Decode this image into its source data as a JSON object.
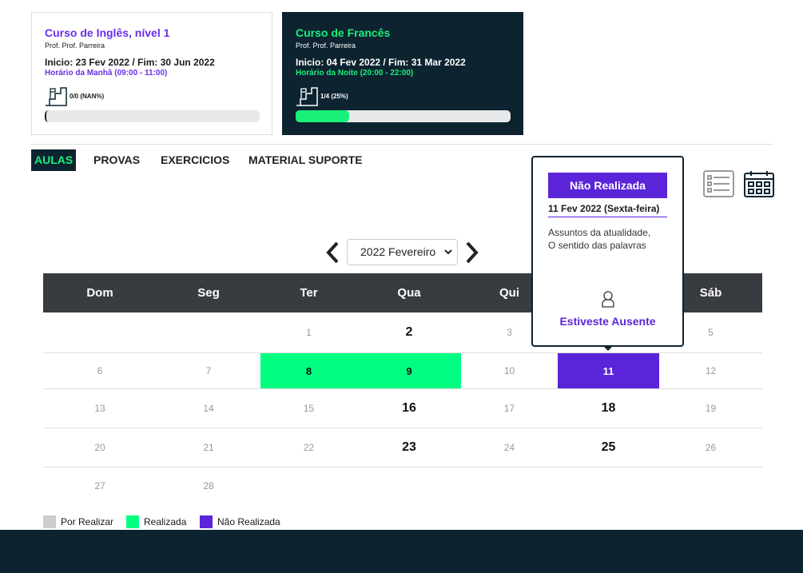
{
  "courses": [
    {
      "title": "Curso de Inglês, nível 1",
      "teacher": "Prof. Prof. Parreira",
      "dates": "Inicio: 23 Fev 2022 / Fim: 30 Jun 2022",
      "schedule": "Horário da Manhã (09:00 - 11:00)",
      "progress_label": "0/0 (NAN%)",
      "progress": 0
    },
    {
      "title": "Curso de Francês",
      "teacher": "Prof. Prof. Parreira",
      "dates": "Inicio: 04 Fev 2022 / Fim: 31 Mar 2022",
      "schedule": "Horário da Noite (20:00 - 22:00)",
      "progress_label": "1/4 (25%)",
      "progress": 25
    }
  ],
  "tabs": [
    "AULAS",
    "PROVAS",
    "EXERCICIOS",
    "MATERIAL SUPORTE"
  ],
  "month": "2022 Fevereiro",
  "calendar": {
    "weekdays": [
      "Dom",
      "Seg",
      "Ter",
      "Qua",
      "Qui",
      null,
      "Sáb"
    ],
    "weeks": [
      [
        null,
        null,
        {
          "day": 1
        },
        {
          "day": 2,
          "bold": true
        },
        {
          "day": 3
        },
        null,
        {
          "day": 5
        }
      ],
      [
        {
          "day": 6
        },
        {
          "day": 7
        },
        {
          "day": 8,
          "color": "#00ff80"
        },
        {
          "day": 9,
          "color": "#00ff80"
        },
        {
          "day": 10
        },
        {
          "day": 11,
          "color": "#5a25d8"
        },
        {
          "day": 12
        }
      ],
      [
        {
          "day": 13
        },
        {
          "day": 14
        },
        {
          "day": 15
        },
        {
          "day": 16,
          "bold": true
        },
        {
          "day": 17
        },
        {
          "day": 18,
          "bold": true
        },
        {
          "day": 19
        }
      ],
      [
        {
          "day": 20
        },
        {
          "day": 21
        },
        {
          "day": 22
        },
        {
          "day": 23,
          "bold": true
        },
        {
          "day": 24
        },
        {
          "day": 25,
          "bold": true
        },
        {
          "day": 26
        }
      ],
      [
        {
          "day": 27
        },
        {
          "day": 28
        },
        null,
        null,
        null,
        null,
        null
      ]
    ]
  },
  "tooltip": {
    "status": "Não Realizada",
    "date": "11 Fev 2022 (Sexta-feira)",
    "topics": [
      "Assuntos da atualidade,",
      "O sentido das palavras"
    ],
    "attendance": "Estiveste Ausente"
  },
  "legend": [
    {
      "label": "Por Realizar",
      "color": "#cccccc"
    },
    {
      "label": "Realizada",
      "color": "#00ff80"
    },
    {
      "label": "Não Realizada",
      "color": "#5a25d8"
    }
  ]
}
